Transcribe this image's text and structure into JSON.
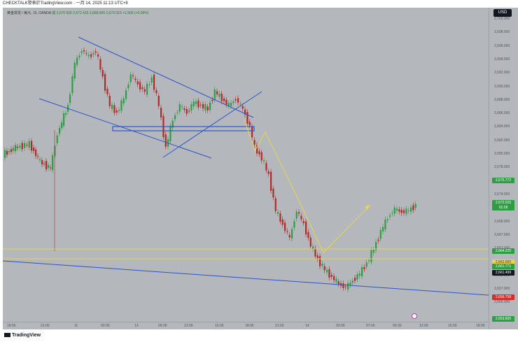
{
  "header": {
    "attribution": "CHECKTALK發表於TradingView.com · 一月 14, 2025 11:13 UTC+8"
  },
  "legend": {
    "symbol": "黄金现货 / 美元, 15, OANDA",
    "open": "開 2,670.500",
    "high": "2,672.415",
    "low": "2,668.995",
    "close": "2,672.015",
    "change": "+1.500 (+0.06%)"
  },
  "currency_button": "USD",
  "price_axis": {
    "ticks": [
      "2,700.000",
      "2,698.000",
      "2,696.000",
      "2,694.000",
      "2,692.000",
      "2,690.000",
      "2,688.000",
      "2,686.000",
      "2,684.000",
      "2,682.000",
      "2,680.000",
      "2,678.000",
      "2,676.000",
      "2,674.000",
      "2,670.000",
      "2,668.000",
      "2,667.000",
      "2,662.000",
      "2,660.000",
      "2,658.000",
      "2,657.000",
      "2,655.000"
    ]
  },
  "price_tags": [
    {
      "label": "2,675.772",
      "color": "#2e9e44"
    },
    {
      "label": "2,672.015",
      "color": "#2e9e44"
    },
    {
      "label": "01:28",
      "color": "#2e9e44"
    },
    {
      "label": "2,664.225",
      "color": "#2e9e44"
    },
    {
      "label": "2,662.000",
      "color": "#e8d44d"
    },
    {
      "label": "2,661.771",
      "color": "#2e9e44"
    },
    {
      "label": "2,661.499",
      "color": "#131722"
    },
    {
      "label": "2,656.758",
      "color": "#d32f2f"
    },
    {
      "label": "2,653.605",
      "color": "#2e9e44"
    }
  ],
  "time_axis": {
    "ticks": [
      "18:00",
      "21:00",
      "11",
      "03:00",
      "13",
      "09:30",
      "12:00",
      "15:00",
      "18:00",
      "21:00",
      "14",
      "03:00",
      "07:00",
      "09:30",
      "12:00",
      "15:00",
      "18:00"
    ]
  },
  "footer": {
    "brand": "TradingView"
  },
  "colors": {
    "bull": "#2e9e44",
    "bear": "#b02a2a",
    "trendline": "#2d54c9",
    "horizontal": "#e8d44d",
    "projection": "#e8d44d"
  }
}
